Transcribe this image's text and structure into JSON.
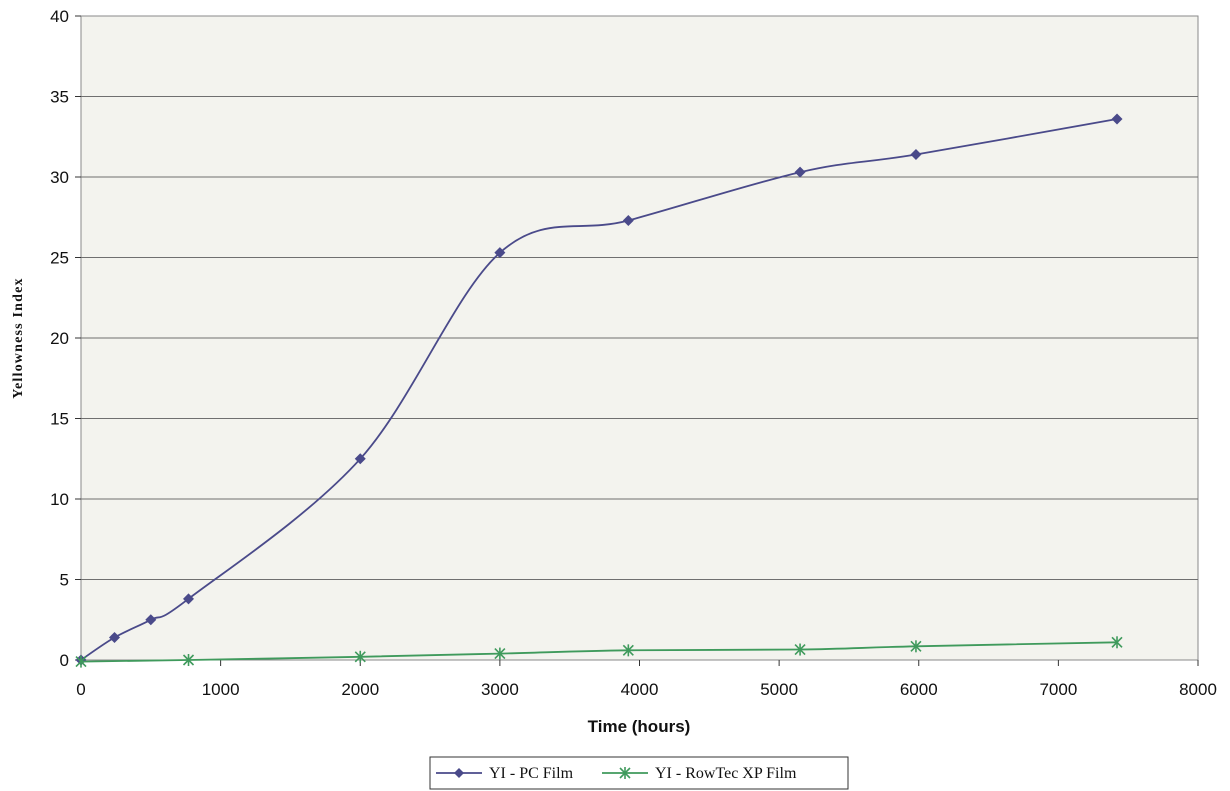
{
  "chart_data": {
    "type": "line",
    "title": "",
    "xlabel": "Time (hours)",
    "ylabel": "Yellowness Index",
    "xlim": [
      0,
      8000
    ],
    "ylim": [
      0,
      40
    ],
    "xticks": [
      0,
      1000,
      2000,
      3000,
      4000,
      5000,
      6000,
      7000,
      8000
    ],
    "yticks": [
      0,
      5,
      10,
      15,
      20,
      25,
      30,
      35,
      40
    ],
    "grid": "horizontal",
    "legend_position": "bottom",
    "series": [
      {
        "name": "YI - PC Film",
        "color": "#4a4a8a",
        "marker": "diamond",
        "x": [
          0,
          240,
          500,
          770,
          2000,
          3000,
          3920,
          5150,
          5980,
          7420
        ],
        "y": [
          0,
          1.4,
          2.5,
          3.8,
          12.5,
          25.3,
          27.3,
          30.3,
          31.4,
          33.6
        ]
      },
      {
        "name": "YI - RowTec XP Film",
        "color": "#3f9a5c",
        "marker": "asterisk",
        "x": [
          0,
          770,
          2000,
          3000,
          3920,
          5150,
          5980,
          7420
        ],
        "y": [
          -0.1,
          0.0,
          0.2,
          0.4,
          0.6,
          0.65,
          0.85,
          1.1
        ]
      }
    ]
  }
}
